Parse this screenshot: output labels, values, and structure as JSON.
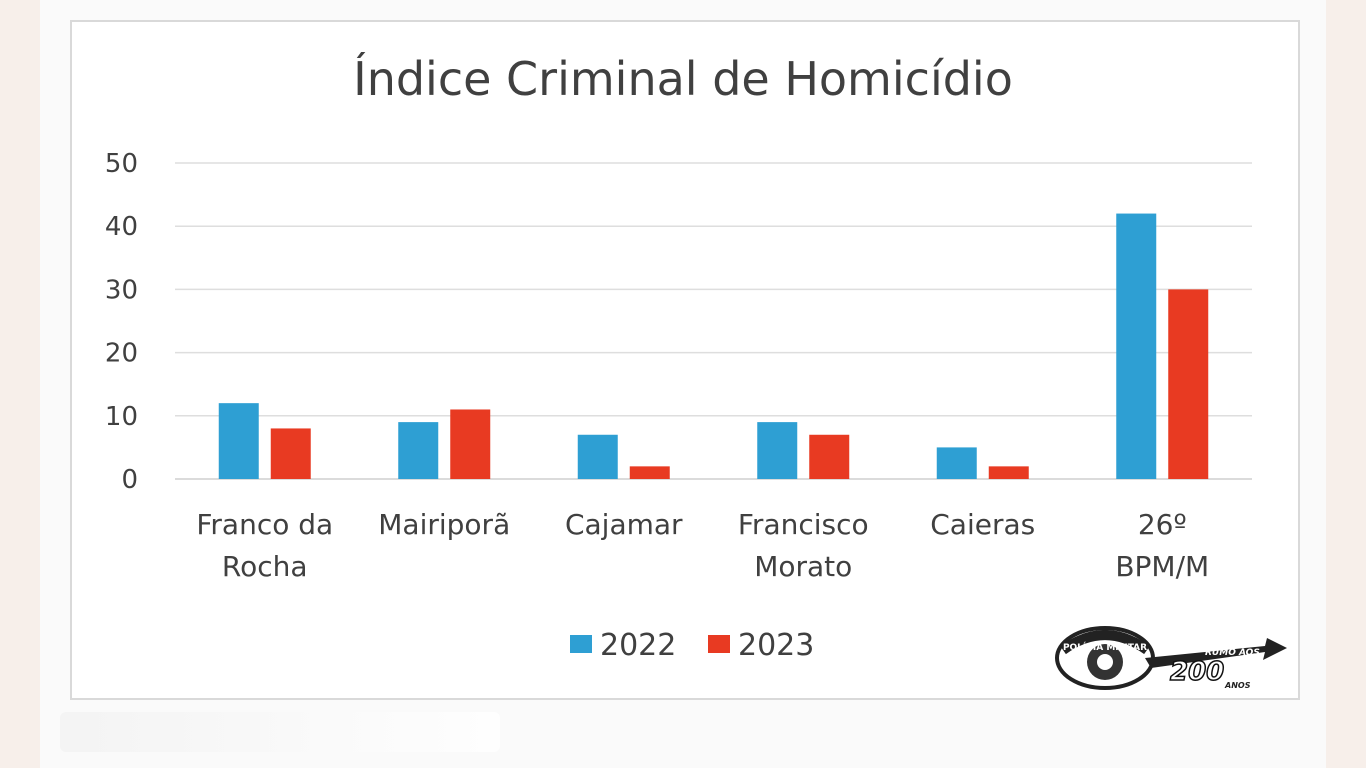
{
  "chart_data": {
    "type": "bar",
    "title": "Índice Criminal de Homicídio",
    "categories": [
      [
        "Franco da",
        "Rocha"
      ],
      [
        "Mairiporã"
      ],
      [
        "Cajamar"
      ],
      [
        "Francisco",
        "Morato"
      ],
      [
        "Caieras"
      ],
      [
        "26º",
        "BPM/M"
      ]
    ],
    "series": [
      {
        "name": "2022",
        "color": "#2e9fd3",
        "values": [
          12,
          9,
          7,
          9,
          5,
          42
        ]
      },
      {
        "name": "2023",
        "color": "#e83a22",
        "values": [
          8,
          11,
          2,
          7,
          2,
          30
        ]
      }
    ],
    "ylim": [
      0,
      50
    ],
    "yticks": [
      0,
      10,
      20,
      30,
      40,
      50
    ],
    "grid": true,
    "legend_position": "bottom"
  },
  "logo": {
    "icon": "policia-militar-200-anos-logo",
    "text_top": "POLÍCIA MILITAR",
    "text_big": "200",
    "text_small": "ANOS",
    "text_rumo": "RUMO AOS"
  }
}
